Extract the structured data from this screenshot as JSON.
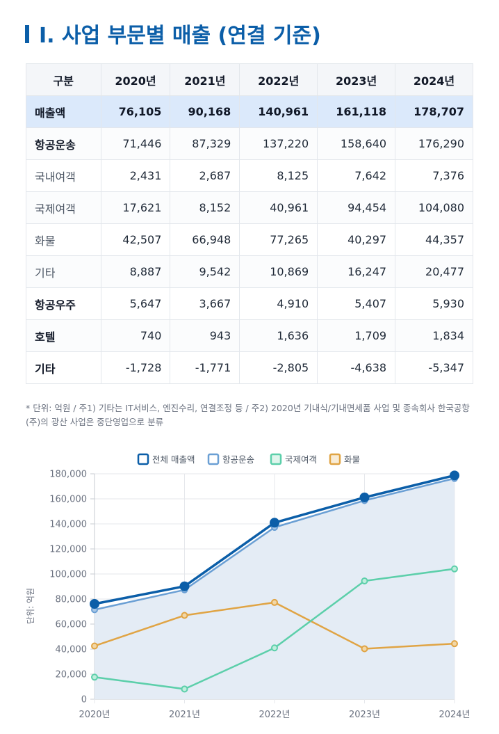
{
  "title": "Ⅰ. 사업 부문별 매출 (연결 기준)",
  "table": {
    "headers": [
      "구분",
      "2020년",
      "2021년",
      "2022년",
      "2023년",
      "2024년"
    ],
    "rows": [
      {
        "label": "매출액",
        "values": [
          "76,105",
          "90,168",
          "140,961",
          "161,118",
          "178,707"
        ]
      },
      {
        "label": "항공운송",
        "values": [
          "71,446",
          "87,329",
          "137,220",
          "158,640",
          "176,290"
        ]
      },
      {
        "label": "국내여객",
        "values": [
          "2,431",
          "2,687",
          "8,125",
          "7,642",
          "7,376"
        ]
      },
      {
        "label": "국제여객",
        "values": [
          "17,621",
          "8,152",
          "40,961",
          "94,454",
          "104,080"
        ]
      },
      {
        "label": "화물",
        "values": [
          "42,507",
          "66,948",
          "77,265",
          "40,297",
          "44,357"
        ]
      },
      {
        "label": "기타",
        "values": [
          "8,887",
          "9,542",
          "10,869",
          "16,247",
          "20,477"
        ]
      },
      {
        "label": "항공우주",
        "values": [
          "5,647",
          "3,667",
          "4,910",
          "5,407",
          "5,930"
        ]
      },
      {
        "label": "호텔",
        "values": [
          "740",
          "943",
          "1,636",
          "1,709",
          "1,834"
        ]
      },
      {
        "label": "기타",
        "values": [
          "-1,728",
          "-1,771",
          "-2,805",
          "-4,638",
          "-5,347"
        ]
      }
    ]
  },
  "note": "* 단위: 억원 / 주1) 기타는 IT서비스, 엔진수리, 연결조정 등 / 주2) 2020년 기내식/기내면세품 사업 및 종속회사 한국공항(주)의 광산 사업은 중단영업으로 분류",
  "chart_data": {
    "type": "line",
    "categories": [
      "2020년",
      "2021년",
      "2022년",
      "2023년",
      "2024년"
    ],
    "ylabel": "단위: 억원",
    "ylim": [
      0,
      180000
    ],
    "yticks": [
      "0",
      "20,000",
      "40,000",
      "60,000",
      "80,000",
      "100,000",
      "120,000",
      "140,000",
      "160,000",
      "180,000"
    ],
    "grid": true,
    "legend_position": "top-center",
    "series": [
      {
        "name": "전체 매출액",
        "values": [
          76105,
          90168,
          140961,
          161118,
          178707
        ],
        "color": "#0b5ea8"
      },
      {
        "name": "항공운송",
        "values": [
          71446,
          87329,
          137220,
          158640,
          176290
        ],
        "color": "#6a9fd4",
        "fill": "#e4ecf5"
      },
      {
        "name": "국제여객",
        "values": [
          17621,
          8152,
          40961,
          94454,
          104080
        ],
        "color": "#5ccfaa"
      },
      {
        "name": "화물",
        "values": [
          42507,
          66948,
          77265,
          40297,
          44357
        ],
        "color": "#e0a444"
      }
    ]
  }
}
